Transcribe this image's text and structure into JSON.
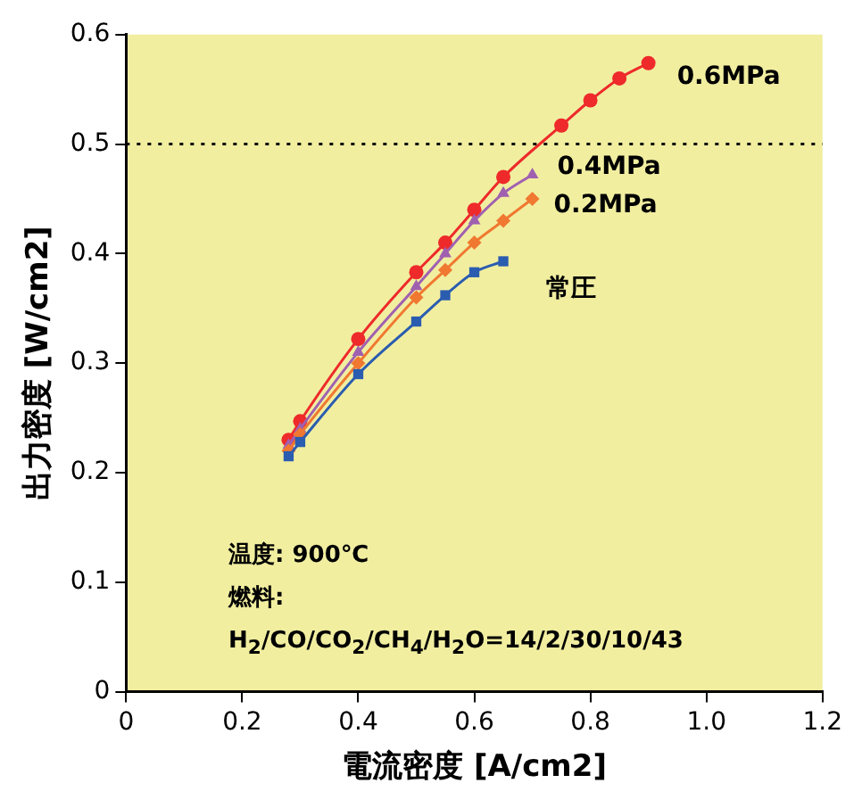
{
  "chart_data": {
    "type": "line",
    "xlabel": "電流密度 [A/cm2]",
    "ylabel": "出力密度 [W/cm2]",
    "xlim": [
      0,
      1.2
    ],
    "xticks": [
      0,
      0.2,
      0.4,
      0.6,
      0.8,
      {
        "value": 1,
        "label": "1.0"
      },
      1.2
    ],
    "ylim": [
      0,
      0.6
    ],
    "yticks": [
      0,
      0.1,
      0.2,
      0.3,
      0.4,
      0.5,
      0.6
    ],
    "grid": false,
    "legend": false,
    "ref_lines": [
      {
        "axis": "y",
        "value": 0.5,
        "color": "#000000",
        "line_style": "dotted"
      }
    ],
    "annotations": [
      "温度: 900℃",
      "燃料:",
      "H$_{2}$/CO/CO$_{2}$/CH$_{4}$/H$_{2}$O=14/2/30/10/43"
    ],
    "series": [
      {
        "name": "0.6MPa",
        "color": "#ee2a2a",
        "marker": "circle",
        "x": [
          0.28,
          0.3,
          0.4,
          0.5,
          0.55,
          0.6,
          0.65,
          0.75,
          0.8,
          0.85,
          0.9
        ],
        "values": [
          0.23,
          0.247,
          0.322,
          0.383,
          0.41,
          0.44,
          0.47,
          0.517,
          0.54,
          0.56,
          0.574
        ]
      },
      {
        "name": "0.4MPa",
        "color": "#a060b0",
        "marker": "triangle",
        "x": [
          0.28,
          0.3,
          0.4,
          0.5,
          0.55,
          0.6,
          0.65,
          0.7
        ],
        "values": [
          0.225,
          0.24,
          0.31,
          0.37,
          0.4,
          0.43,
          0.455,
          0.472
        ]
      },
      {
        "name": "0.2MPa",
        "color": "#f07830",
        "marker": "diamond",
        "x": [
          0.28,
          0.3,
          0.4,
          0.5,
          0.55,
          0.6,
          0.65,
          0.7
        ],
        "values": [
          0.22,
          0.235,
          0.3,
          0.36,
          0.385,
          0.41,
          0.43,
          0.45
        ]
      },
      {
        "name": "常圧",
        "color": "#2a5cb0",
        "marker": "square",
        "x": [
          0.28,
          0.3,
          0.4,
          0.5,
          0.55,
          0.6,
          0.65
        ],
        "values": [
          0.215,
          0.228,
          0.29,
          0.338,
          0.362,
          0.383,
          0.393
        ]
      }
    ]
  }
}
